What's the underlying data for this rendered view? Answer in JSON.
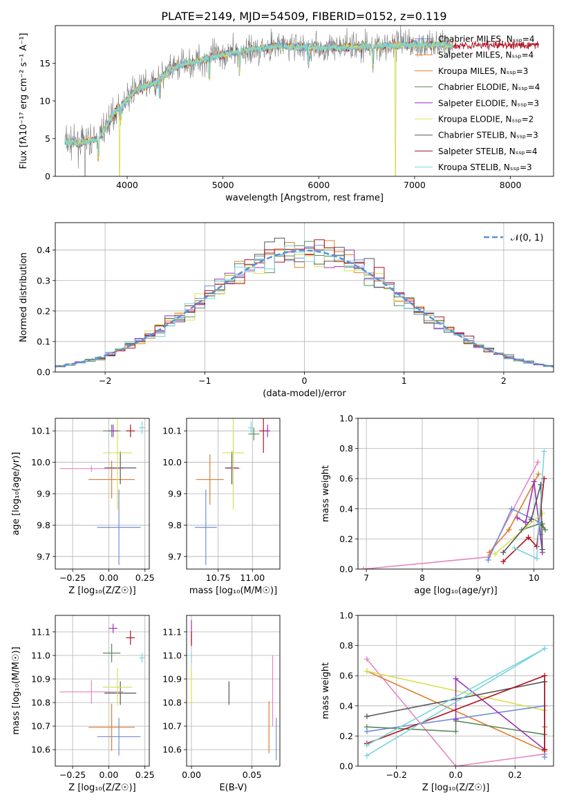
{
  "colors": {
    "chab_miles": "#6f8ed6",
    "salp_miles": "#e07b2a",
    "krou_miles": "#e07b2a",
    "chab_elodie": "#5a8a5a",
    "salp_elodie": "#9b30b5",
    "krou_elodie": "#d8e050",
    "chab_stelib": "#555555",
    "salp_stelib": "#b01020",
    "krou_stelib": "#78d4dc",
    "pink": "#e585c0",
    "normal": "#5b8fd6"
  },
  "chart_data": [
    {
      "id": "spectrum",
      "type": "line",
      "title": "PLATE=2149, MJD=54509, FIBERID=0152, z=0.119",
      "xlabel": "wavelength [Angstrom, rest frame]",
      "ylabel": "Flux [fλ10⁻¹⁷ erg cm⁻² s⁻¹ A⁻¹]",
      "xlim": [
        3250,
        8450
      ],
      "ylim": [
        0,
        20
      ],
      "xticks": [
        "4000",
        "5000",
        "6000",
        "7000",
        "8000"
      ],
      "yticks": [
        "0",
        "5",
        "10",
        "15"
      ],
      "legend_position": "upper-right",
      "legend": [
        "Chabrier MILES, Nₛₛₚ=4",
        "Salpeter MILES, Nₛₛₚ=4",
        "Kroupa MILES, Nₛₛₚ=3",
        "Chabrier ELODIE, Nₛₛₚ=4",
        "Salpeter ELODIE, Nₛₛₚ=3",
        "Kroupa ELODIE, Nₛₛₚ=2",
        "Chabrier STELIB, Nₛₛₚ=3",
        "Salpeter STELIB, Nₛₛₚ=4",
        "Kroupa STELIB, Nₛₛₚ=3"
      ],
      "continuum": {
        "x": [
          3350,
          3500,
          3700,
          3900,
          4100,
          4300,
          4500,
          4800,
          5000,
          5300,
          5600,
          6000,
          6500,
          7000,
          7400
        ],
        "y": [
          4.6,
          4.4,
          5.0,
          9.0,
          11.5,
          12.5,
          14.5,
          15.5,
          16.2,
          16.8,
          17.3,
          17.0,
          17.2,
          17.5,
          17.4
        ]
      }
    },
    {
      "id": "residuals",
      "type": "line",
      "xlabel": "(data-model)/error",
      "ylabel": "Normed distribution",
      "xlim": [
        -2.5,
        2.5
      ],
      "ylim": [
        0,
        0.49
      ],
      "xticks": [
        "−2",
        "−1",
        "0",
        "1",
        "2"
      ],
      "yticks": [
        "0.0",
        "0.1",
        "0.2",
        "0.3",
        "0.4"
      ],
      "grid": true,
      "legend_position": "upper-right",
      "legend": [
        "𝒩(0, 1)"
      ],
      "normal": {
        "mu": 0,
        "sigma": 1
      }
    },
    {
      "id": "Z-age",
      "type": "scatter",
      "xlabel": "Z [log₁₀(Z/Z☉)]",
      "ylabel": "age  [log₁₀(age/yr)]",
      "xlim": [
        -0.37,
        0.28
      ],
      "ylim": [
        9.66,
        10.14
      ],
      "xticks": [
        "−0.25",
        "0.00",
        "0.25"
      ],
      "yticks": [
        "9.7",
        "9.8",
        "9.9",
        "10.0",
        "10.1"
      ],
      "grid": true,
      "points": [
        {
          "c": "chab_miles",
          "x": 0.07,
          "dx": 0.15,
          "y": 9.793,
          "dy": 0.12
        },
        {
          "c": "salp_miles",
          "x": 0.02,
          "dx": 0.16,
          "y": 9.945,
          "dy": 0.06
        },
        {
          "c": "chab_stelib",
          "x": 0.08,
          "dx": 0.11,
          "y": 9.982,
          "dy": 0.052
        },
        {
          "c": "pink",
          "x": -0.12,
          "dx": 0.22,
          "y": 9.98,
          "dy": 0.01
        },
        {
          "c": "krou_elodie",
          "x": 0.06,
          "dx": 0.1,
          "y": 10.03,
          "dy": 0.18
        },
        {
          "c": "chab_elodie",
          "x": 0.02,
          "dx": 0.06,
          "y": 10.1,
          "dy": 0.02
        },
        {
          "c": "salp_elodie",
          "x": 0.03,
          "dx": 0.03,
          "y": 10.1,
          "dy": 0.02
        },
        {
          "c": "salp_stelib",
          "x": 0.15,
          "dx": 0.03,
          "y": 10.1,
          "dy": 0.02
        },
        {
          "c": "krou_stelib",
          "x": 0.23,
          "dx": 0.02,
          "y": 10.11,
          "dy": 0.02
        }
      ]
    },
    {
      "id": "mass-age",
      "type": "scatter",
      "xlabel": "mass [log₁₀(M/M☉)]",
      "xlim": [
        10.52,
        11.2
      ],
      "ylim": [
        9.66,
        10.14
      ],
      "xticks": [
        "10.75",
        "11.00"
      ],
      "yticks": [
        "9.7",
        "9.8",
        "9.9",
        "10.0",
        "10.1"
      ],
      "grid": true,
      "points": [
        {
          "c": "chab_miles",
          "x": 10.66,
          "dx": 0.08,
          "y": 9.793,
          "dy": 0.12
        },
        {
          "c": "salp_miles",
          "x": 10.69,
          "dx": 0.1,
          "y": 9.945,
          "dy": 0.08
        },
        {
          "c": "chab_stelib",
          "x": 10.85,
          "dx": 0.05,
          "y": 9.982,
          "dy": 0.052
        },
        {
          "c": "pink",
          "x": 10.86,
          "dx": 0.05,
          "y": 9.98,
          "dy": 0.01
        },
        {
          "c": "krou_elodie",
          "x": 10.86,
          "dx": 0.08,
          "y": 10.03,
          "dy": 0.18
        },
        {
          "c": "chab_elodie",
          "x": 11.01,
          "dx": 0.04,
          "y": 10.09,
          "dy": 0.02
        },
        {
          "c": "salp_stelib",
          "x": 11.08,
          "dx": 0.03,
          "y": 10.1,
          "dy": 0.07
        },
        {
          "c": "salp_elodie",
          "x": 11.11,
          "dx": 0.02,
          "y": 10.1,
          "dy": 0.02
        },
        {
          "c": "krou_stelib",
          "x": 10.99,
          "dx": 0.02,
          "y": 10.11,
          "dy": 0.02
        }
      ]
    },
    {
      "id": "age-weight",
      "type": "line",
      "xlabel": "age  [log₁₀(age/yr)]",
      "ylabel": "mass weight",
      "xlim": [
        6.85,
        10.35
      ],
      "ylim": [
        0,
        1
      ],
      "xticks": [
        "7",
        "8",
        "9",
        "10"
      ],
      "yticks": [
        "0.0",
        "0.2",
        "0.4",
        "0.6",
        "0.8",
        "1.0"
      ],
      "grid": true,
      "series": [
        {
          "c": "pink",
          "x": [
            6.95,
            9.18,
            10.07
          ],
          "y": [
            0.0,
            0.08,
            0.71
          ]
        },
        {
          "c": "salp_miles",
          "x": [
            9.2,
            9.55,
            10.08
          ],
          "y": [
            0.11,
            0.26,
            0.63
          ]
        },
        {
          "c": "chab_miles",
          "x": [
            9.18,
            9.6,
            10.1,
            10.12
          ],
          "y": [
            0.06,
            0.4,
            0.31,
            0.23
          ]
        },
        {
          "c": "chab_elodie",
          "x": [
            9.78,
            10.1,
            10.2,
            10.15
          ],
          "y": [
            0.26,
            0.3,
            0.26,
            0.3
          ]
        },
        {
          "c": "salp_elodie",
          "x": [
            9.7,
            9.85,
            10.0,
            10.15
          ],
          "y": [
            0.34,
            0.31,
            0.58,
            0.11
          ]
        },
        {
          "c": "krou_elodie",
          "x": [
            9.3,
            10.15
          ],
          "y": [
            0.1,
            0.37
          ]
        },
        {
          "c": "chab_stelib",
          "x": [
            9.45,
            9.95,
            10.12,
            10.15
          ],
          "y": [
            0.11,
            0.33,
            0.56,
            0.13
          ]
        },
        {
          "c": "salp_stelib",
          "x": [
            9.45,
            9.9,
            10.05,
            10.18
          ],
          "y": [
            0.05,
            0.21,
            0.15,
            0.6
          ]
        },
        {
          "c": "krou_stelib",
          "x": [
            9.65,
            10.05,
            10.18
          ],
          "y": [
            0.14,
            0.07,
            0.78
          ]
        }
      ]
    },
    {
      "id": "Z-mass",
      "type": "scatter",
      "xlabel": "Z [log₁₀(Z/Z☉)]",
      "ylabel": "mass [log₁₀(M/M☉)]",
      "xlim": [
        -0.37,
        0.28
      ],
      "ylim": [
        10.53,
        11.17
      ],
      "xticks": [
        "−0.25",
        "0.00",
        "0.25"
      ],
      "yticks": [
        "10.6",
        "10.7",
        "10.8",
        "10.9",
        "11.0",
        "11.1"
      ],
      "grid": true,
      "points": [
        {
          "c": "chab_miles",
          "x": 0.07,
          "dx": 0.15,
          "y": 10.655,
          "dy": 0.08
        },
        {
          "c": "salp_miles",
          "x": 0.02,
          "dx": 0.16,
          "y": 10.695,
          "dy": 0.1
        },
        {
          "c": "chab_stelib",
          "x": 0.08,
          "dx": 0.11,
          "y": 10.84,
          "dy": 0.05
        },
        {
          "c": "pink",
          "x": -0.12,
          "dx": 0.22,
          "y": 10.845,
          "dy": 0.05
        },
        {
          "c": "krou_elodie",
          "x": 0.06,
          "dx": 0.1,
          "y": 10.865,
          "dy": 0.08
        },
        {
          "c": "chab_elodie",
          "x": 0.02,
          "dx": 0.06,
          "y": 11.01,
          "dy": 0.04
        },
        {
          "c": "salp_elodie",
          "x": 0.03,
          "dx": 0.03,
          "y": 11.115,
          "dy": 0.02
        },
        {
          "c": "salp_stelib",
          "x": 0.15,
          "dx": 0.03,
          "y": 11.075,
          "dy": 0.03
        },
        {
          "c": "krou_stelib",
          "x": 0.23,
          "dx": 0.02,
          "y": 10.99,
          "dy": 0.02
        }
      ]
    },
    {
      "id": "ebv-mass",
      "type": "scatter",
      "xlabel": "E(B-V)",
      "xlim": [
        -0.004,
        0.073
      ],
      "ylim": [
        10.53,
        11.17
      ],
      "xticks": [
        "0.00",
        "0.05"
      ],
      "yticks": [
        "10.6",
        "10.7",
        "10.8",
        "10.9",
        "11.0",
        "11.1"
      ],
      "grid": true,
      "points": [
        {
          "c": "salp_elodie",
          "x": 0.0,
          "dx": 0,
          "y": 11.1,
          "dy": 0.05
        },
        {
          "c": "salp_stelib",
          "x": 0.0,
          "dx": 0,
          "y": 11.07,
          "dy": 0.03
        },
        {
          "c": "krou_stelib",
          "x": 0.0,
          "dx": 0,
          "y": 10.99,
          "dy": 0.02
        },
        {
          "c": "krou_elodie",
          "x": 0.0,
          "dx": 0,
          "y": 10.87,
          "dy": 0.08
        },
        {
          "c": "chab_stelib",
          "x": 0.031,
          "dx": 0,
          "y": 10.84,
          "dy": 0.05
        },
        {
          "c": "pink",
          "x": 0.067,
          "dx": 0,
          "y": 10.85,
          "dy": 0.15
        },
        {
          "c": "salp_miles",
          "x": 0.064,
          "dx": 0,
          "y": 10.695,
          "dy": 0.11
        },
        {
          "c": "chab_miles",
          "x": 0.07,
          "dx": 0,
          "y": 10.645,
          "dy": 0.09
        }
      ]
    },
    {
      "id": "Z-weight",
      "type": "line",
      "xlabel": "Z [log₁₀(Z/Z☉)]",
      "ylabel": "mass weight",
      "xlim": [
        -0.33,
        0.33
      ],
      "ylim": [
        0,
        1
      ],
      "xticks": [
        "−0.2",
        "0.0",
        "0.2"
      ],
      "yticks": [
        "0.0",
        "0.2",
        "0.4",
        "0.6",
        "0.8",
        "1.0"
      ],
      "grid": true,
      "series": [
        {
          "c": "pink",
          "x": [
            -0.3,
            0.0,
            0.3
          ],
          "y": [
            0.71,
            0.0,
            0.08
          ]
        },
        {
          "c": "salp_miles",
          "x": [
            -0.3,
            0.3,
            0.3
          ],
          "y": [
            0.63,
            0.1,
            0.26
          ]
        },
        {
          "c": "krou_elodie",
          "x": [
            -0.3,
            0.3
          ],
          "y": [
            0.63,
            0.37
          ]
        },
        {
          "c": "chab_miles",
          "x": [
            -0.3,
            0.3,
            0.3
          ],
          "y": [
            0.23,
            0.4,
            0.06
          ]
        },
        {
          "c": "chab_elodie",
          "x": [
            -0.3,
            0.0,
            0.0,
            0.3
          ],
          "y": [
            0.26,
            0.23,
            0.3,
            0.21
          ]
        },
        {
          "c": "salp_elodie",
          "x": [
            0.0,
            0.0,
            0.3
          ],
          "y": [
            0.31,
            0.58,
            0.11
          ]
        },
        {
          "c": "chab_stelib",
          "x": [
            -0.3,
            0.3,
            0.3
          ],
          "y": [
            0.33,
            0.56,
            0.11
          ]
        },
        {
          "c": "salp_stelib",
          "x": [
            -0.3,
            0.3,
            0.3
          ],
          "y": [
            0.15,
            0.6,
            0.11
          ]
        },
        {
          "c": "krou_stelib",
          "x": [
            -0.3,
            0.3,
            -0.3
          ],
          "y": [
            0.07,
            0.78,
            0.14
          ]
        }
      ]
    }
  ]
}
